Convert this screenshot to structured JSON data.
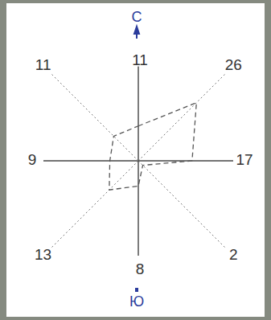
{
  "chart_data": {
    "type": "radar",
    "categories": [
      "С",
      null,
      null,
      null,
      "Ю",
      null,
      null,
      null
    ],
    "values": [
      11,
      26,
      17,
      2,
      8,
      13,
      9,
      11
    ],
    "ylim": [
      0,
      30
    ],
    "data_labels": true,
    "tick_labels": false,
    "color": "#555555",
    "line_style": "dashed"
  }
}
